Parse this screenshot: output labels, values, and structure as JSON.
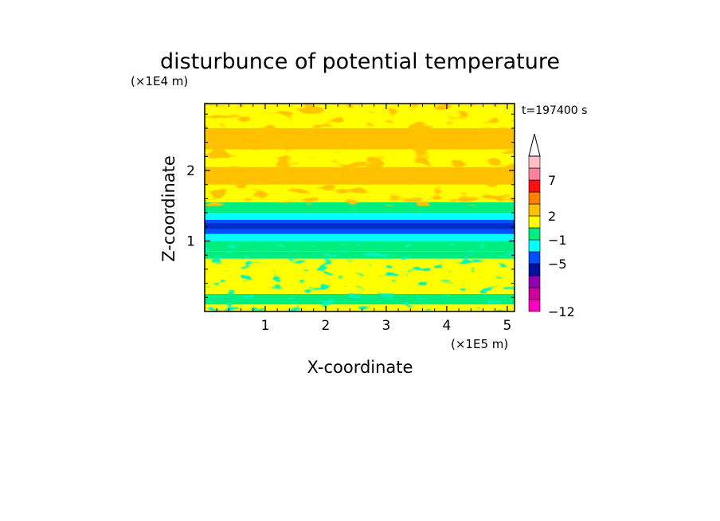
{
  "chart_data": {
    "type": "heatmap",
    "title": "disturbunce of potential temperature",
    "time_label": "t=197400 s",
    "xlabel": "X-coordinate",
    "ylabel": "Z-coordinate",
    "x_unit_label": "(×1E5 m)",
    "y_unit_label": "(×1E4 m)",
    "xlim": [
      0,
      5.12
    ],
    "ylim": [
      0,
      2.95
    ],
    "x_ticks": [
      1,
      2,
      3,
      4,
      5
    ],
    "x_tick_labels": [
      "1",
      "2",
      "3",
      "4",
      "5"
    ],
    "y_ticks": [
      1,
      2
    ],
    "y_tick_labels": [
      "1",
      "2"
    ],
    "grid": false,
    "colorbar": {
      "placement": "right",
      "labels": [
        {
          "level": 6,
          "text": "−12"
        },
        {
          "level": 3,
          "text": "−5"
        },
        {
          "level": 1.5,
          "text": "−1"
        },
        {
          "level": 0.5,
          "text": "2"
        },
        {
          "level": -1,
          "text": "7"
        }
      ],
      "colors": [
        "#ff00c0",
        "#d000a0",
        "#9000b0",
        "#0010a0",
        "#0050ff",
        "#00ffff",
        "#00ee80",
        "#ffff00",
        "#ffc000",
        "#ff8000",
        "#ff1010",
        "#ff80a0",
        "#ffc0c8"
      ],
      "extend": "max"
    },
    "bands": [
      {
        "z0": 0.0,
        "z1": 0.1,
        "value": 3
      },
      {
        "z0": 0.1,
        "z1": 0.25,
        "value": 0
      },
      {
        "z0": 0.25,
        "z1": 0.6,
        "value": 3
      },
      {
        "z0": 0.6,
        "z1": 0.75,
        "value": 2
      },
      {
        "z0": 0.75,
        "z1": 0.85,
        "value": 0
      },
      {
        "z0": 0.85,
        "z1": 1.0,
        "value": 0
      },
      {
        "z0": 1.0,
        "z1": 1.1,
        "value": -1
      },
      {
        "z0": 1.1,
        "z1": 1.3,
        "value": -4
      },
      {
        "z0": 1.3,
        "z1": 1.4,
        "value": -1
      },
      {
        "z0": 1.4,
        "z1": 1.55,
        "value": 0
      },
      {
        "z0": 1.55,
        "z1": 1.8,
        "value": 3
      },
      {
        "z0": 1.8,
        "z1": 2.05,
        "value": 4
      },
      {
        "z0": 2.05,
        "z1": 2.3,
        "value": 3
      },
      {
        "z0": 2.3,
        "z1": 2.6,
        "value": 4
      },
      {
        "z0": 2.6,
        "z1": 2.95,
        "value": 3
      }
    ]
  }
}
